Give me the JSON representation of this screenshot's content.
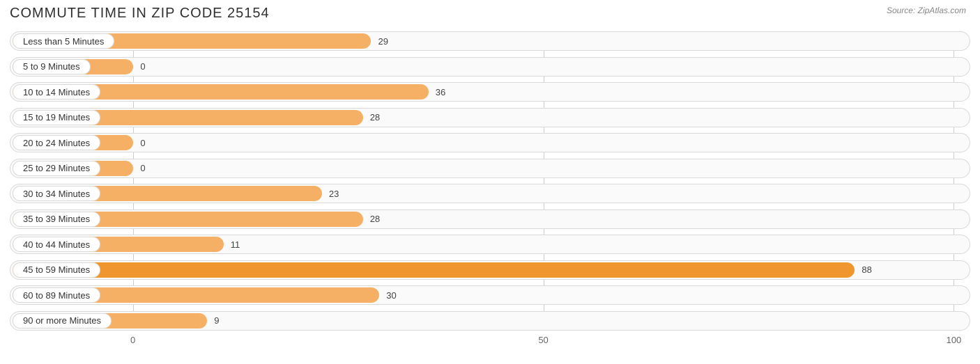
{
  "header": {
    "title": "COMMUTE TIME IN ZIP CODE 25154",
    "source_prefix": "Source: ",
    "source_name": "ZipAtlas.com"
  },
  "chart": {
    "type": "bar-horizontal",
    "background_color": "#ffffff",
    "row_background": "#fafafa",
    "row_border_color": "#d9d9d9",
    "bar_color": "#f5b066",
    "bar_color_highlight": "#f0962f",
    "grid_color": "#cccccc",
    "label_pill_bg": "#ffffff",
    "label_fontsize": 13,
    "value_fontsize": 13,
    "title_fontsize": 20,
    "title_color": "#303030",
    "source_color": "#888888",
    "x_axis": {
      "min": -15,
      "max": 102,
      "ticks": [
        0,
        50,
        100
      ],
      "tick_labels": [
        "0",
        "50",
        "100"
      ]
    },
    "label_region_end_value": 0,
    "rows": [
      {
        "label": "Less than 5 Minutes",
        "value": 29,
        "highlight": false
      },
      {
        "label": "5 to 9 Minutes",
        "value": 0,
        "highlight": false
      },
      {
        "label": "10 to 14 Minutes",
        "value": 36,
        "highlight": false
      },
      {
        "label": "15 to 19 Minutes",
        "value": 28,
        "highlight": false
      },
      {
        "label": "20 to 24 Minutes",
        "value": 0,
        "highlight": false
      },
      {
        "label": "25 to 29 Minutes",
        "value": 0,
        "highlight": false
      },
      {
        "label": "30 to 34 Minutes",
        "value": 23,
        "highlight": false
      },
      {
        "label": "35 to 39 Minutes",
        "value": 28,
        "highlight": false
      },
      {
        "label": "40 to 44 Minutes",
        "value": 11,
        "highlight": false
      },
      {
        "label": "45 to 59 Minutes",
        "value": 88,
        "highlight": true
      },
      {
        "label": "60 to 89 Minutes",
        "value": 30,
        "highlight": false
      },
      {
        "label": "90 or more Minutes",
        "value": 9,
        "highlight": false
      }
    ]
  }
}
